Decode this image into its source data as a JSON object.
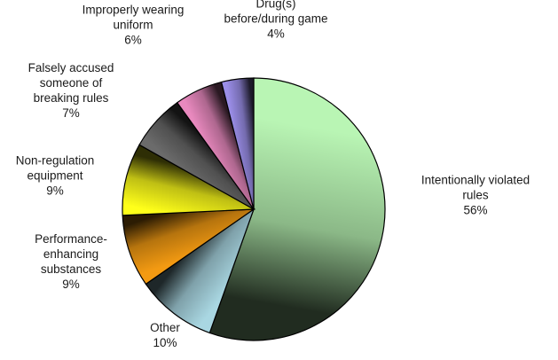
{
  "chart_data": {
    "type": "pie",
    "title": "",
    "slices": [
      {
        "label": "Intentionally violated rules",
        "value": 56,
        "value_label": "56%",
        "color": "#b9f5b4"
      },
      {
        "label": "Other",
        "value": 10,
        "value_label": "10%",
        "color": "#a9d7e2"
      },
      {
        "label": "Performance-enhancing substances",
        "value": 9,
        "value_label": "9%",
        "color": "#f39a12"
      },
      {
        "label": "Non-regulation equipment",
        "value": 9,
        "value_label": "9%",
        "color": "#ffff1a"
      },
      {
        "label": "Falsely accused someone of breaking rules",
        "value": 7,
        "value_label": "7%",
        "color": "#6b6b6b"
      },
      {
        "label": "Improperly wearing uniform",
        "value": 6,
        "value_label": "6%",
        "color": "#e889be"
      },
      {
        "label": "Drug(s) before/during game",
        "value": 4,
        "value_label": "4%",
        "color": "#9b8ee8"
      }
    ],
    "label_lines": [
      [
        "Intentionally violated",
        "rules"
      ],
      [
        "Other"
      ],
      [
        "Performance-",
        "enhancing",
        "substances"
      ],
      [
        "Non-regulation",
        "equipment"
      ],
      [
        "Falsely accused",
        "someone of",
        "breaking rules"
      ],
      [
        "Improperly wearing",
        "uniform"
      ],
      [
        "Drug(s)",
        "before/during game"
      ]
    ],
    "start_angle_deg": 0,
    "direction": "clockwise",
    "slice_shading": "gradient",
    "legend": "none"
  }
}
